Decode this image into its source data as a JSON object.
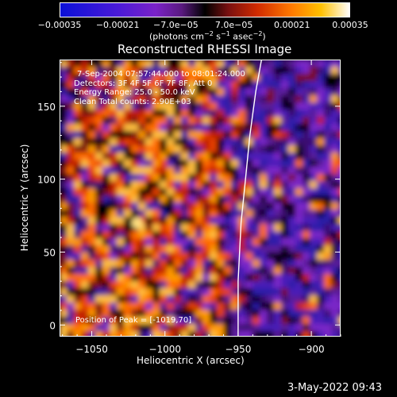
{
  "chart_data": {
    "type": "heatmap",
    "title": "Reconstructed RHESSI Image",
    "xlabel": "Heliocentric X (arcsec)",
    "ylabel": "Heliocentric Y (arcsec)",
    "xlim": [
      -1072,
      -880
    ],
    "ylim": [
      -8,
      182
    ],
    "x_ticks": [
      -1050,
      -1000,
      -950,
      -900
    ],
    "x_tick_labels": [
      "−1050",
      "−1000",
      "−950",
      "−900"
    ],
    "y_ticks": [
      0,
      50,
      100,
      150
    ],
    "y_tick_labels": [
      "0",
      "50",
      "100",
      "150"
    ],
    "colorbar": {
      "min": -0.00035,
      "max": 0.00035,
      "ticks": [
        -0.00035,
        -0.00021,
        -7e-05,
        7e-05,
        0.00021,
        0.00035
      ],
      "tick_labels": [
        "−0.00035",
        "−0.00021",
        "−7.0e−05",
        "7.0e−05",
        "0.00021",
        "0.00035"
      ],
      "units_text": "(photons cm",
      "units_sup1": "−2",
      "units_mid": " s",
      "units_sup2": "−1",
      "units_end": " asec",
      "units_sup3": "−2",
      "units_close": ")",
      "colors": [
        "#0a10d8",
        "#4a1ad8",
        "#7a22c8",
        "#5a1a80",
        "#000000",
        "#781010",
        "#d02a00",
        "#ff7a00",
        "#ffc000",
        "#ffffff"
      ]
    },
    "annotations": [
      "7-Sep-2004 07:57:44.000 to 08:01:24.000",
      "Detectors: 3F 4F 5F 6F 7F 8F, Att 0",
      "Energy Range: 25.0 - 50.0 keV",
      "Clean     Total counts: 2.90E+03"
    ],
    "peak_label": "Position of Peak = [-1019,70]",
    "peak": {
      "x": -1019,
      "y": 70
    },
    "limb_curve": [
      [
        -950,
        -8
      ],
      [
        -950,
        30
      ],
      [
        -948,
        70
      ],
      [
        -945,
        100
      ],
      [
        -942,
        130
      ],
      [
        -938,
        160
      ],
      [
        -934,
        182
      ]
    ]
  },
  "footer": {
    "timestamp": "3-May-2022 09:43"
  }
}
